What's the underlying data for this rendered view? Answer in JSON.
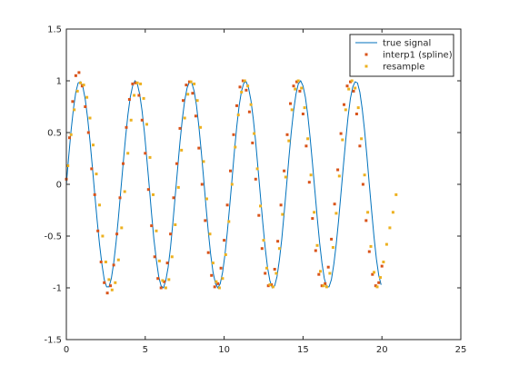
{
  "chart_data": {
    "type": "line",
    "title": "",
    "xlabel": "",
    "ylabel": "",
    "xlim": [
      0,
      25
    ],
    "ylim": [
      -1.5,
      1.5
    ],
    "x_ticks": [
      0,
      5,
      10,
      15,
      20,
      25
    ],
    "y_ticks": [
      -1.5,
      -1,
      -0.5,
      0,
      0.5,
      1,
      1.5
    ],
    "x_tick_labels": [
      "0",
      "5",
      "10",
      "15",
      "20",
      "25"
    ],
    "y_tick_labels": [
      "-1.5",
      "-1",
      "-0.5",
      "0",
      "0.5",
      "1",
      "1.5"
    ],
    "grid": false,
    "legend_position": "top-right",
    "series": [
      {
        "name": "true signal",
        "style": "line",
        "color": "#0072bd",
        "x": [
          0,
          0.15,
          0.3,
          0.45,
          0.6,
          0.75,
          0.9,
          1.05,
          1.2,
          1.35,
          1.5,
          1.65,
          1.8,
          1.95,
          2.1,
          2.25,
          2.4,
          2.55,
          2.7,
          2.85,
          3.0,
          3.15,
          3.3,
          3.45,
          3.6,
          3.75,
          3.9,
          4.05,
          4.2,
          4.35,
          4.5,
          4.65,
          4.8,
          4.95,
          5.1,
          5.25,
          5.4,
          5.55,
          5.7,
          5.85,
          6.0,
          6.15,
          6.3,
          6.45,
          6.6,
          6.75,
          6.9,
          7.05,
          7.2,
          7.35,
          7.5,
          7.65,
          7.8,
          7.95,
          8.1,
          8.25,
          8.4,
          8.55,
          8.7,
          8.85,
          9.0,
          9.15,
          9.3,
          9.45,
          9.6,
          9.75,
          9.9,
          10.05,
          10.2,
          10.35,
          10.5,
          10.65,
          10.8,
          10.95,
          11.1,
          11.25,
          11.4,
          11.55,
          11.7,
          11.85,
          12.0,
          12.15,
          12.3,
          12.45,
          12.6,
          12.75,
          12.9,
          13.05,
          13.2,
          13.35,
          13.5,
          13.65,
          13.8,
          13.95,
          14.1,
          14.25,
          14.4,
          14.55,
          14.7,
          14.85,
          15.0,
          15.15,
          15.3,
          15.45,
          15.6,
          15.75,
          15.9,
          16.05,
          16.2,
          16.35,
          16.5,
          16.65,
          16.8,
          16.95,
          17.1,
          17.25,
          17.4,
          17.55,
          17.7,
          17.85,
          18.0,
          18.15,
          18.3,
          18.45,
          18.6,
          18.75,
          18.9,
          19.05,
          19.2,
          19.35,
          19.5,
          19.65,
          19.8,
          19.95
        ],
        "y": [
          0.0,
          0.27,
          0.52,
          0.73,
          0.89,
          0.98,
          0.99,
          0.94,
          0.82,
          0.64,
          0.42,
          0.17,
          -0.09,
          -0.35,
          -0.58,
          -0.77,
          -0.92,
          -0.99,
          -0.99,
          -0.91,
          -0.76,
          -0.56,
          -0.32,
          -0.06,
          0.2,
          0.45,
          0.67,
          0.84,
          0.95,
          1.0,
          0.97,
          0.87,
          0.71,
          0.5,
          0.25,
          -0.01,
          -0.28,
          -0.53,
          -0.73,
          -0.89,
          -0.98,
          -1.0,
          -0.93,
          -0.8,
          -0.61,
          -0.37,
          -0.11,
          0.15,
          0.41,
          0.63,
          0.81,
          0.93,
          0.99,
          0.98,
          0.9,
          0.76,
          0.56,
          0.32,
          0.06,
          -0.21,
          -0.46,
          -0.68,
          -0.85,
          -0.96,
          -1.0,
          -0.96,
          -0.85,
          -0.68,
          -0.46,
          -0.21,
          0.05,
          0.32,
          0.56,
          0.76,
          0.9,
          0.98,
          0.99,
          0.93,
          0.81,
          0.63,
          0.41,
          0.15,
          -0.11,
          -0.37,
          -0.61,
          -0.8,
          -0.93,
          -1.0,
          -0.98,
          -0.89,
          -0.73,
          -0.53,
          -0.28,
          -0.02,
          0.25,
          0.5,
          0.71,
          0.87,
          0.97,
          1.0,
          0.95,
          0.84,
          0.67,
          0.45,
          0.2,
          -0.06,
          -0.32,
          -0.56,
          -0.76,
          -0.91,
          -0.99,
          -0.99,
          -0.92,
          -0.77,
          -0.58,
          -0.35,
          -0.09,
          0.17,
          0.42,
          0.65,
          0.83,
          0.94,
          0.99,
          0.98,
          0.89,
          0.73,
          0.52,
          0.27,
          0.0,
          -0.26,
          -0.51,
          -0.72,
          -0.88,
          -0.97
        ]
      },
      {
        "name": "interp1 (spline)",
        "style": "markers",
        "color": "#d95319",
        "x": [
          0.0,
          0.2,
          0.4,
          0.6,
          0.8,
          1.0,
          1.2,
          1.4,
          1.6,
          1.8,
          2.0,
          2.2,
          2.4,
          2.6,
          2.8,
          3.0,
          3.2,
          3.4,
          3.6,
          3.8,
          4.0,
          4.2,
          4.4,
          4.6,
          4.8,
          5.0,
          5.2,
          5.4,
          5.6,
          5.8,
          6.0,
          6.2,
          6.4,
          6.6,
          6.8,
          7.0,
          7.2,
          7.4,
          7.6,
          7.8,
          8.0,
          8.2,
          8.4,
          8.6,
          8.8,
          9.0,
          9.2,
          9.4,
          9.6,
          9.8,
          10.0,
          10.2,
          10.4,
          10.6,
          10.8,
          11.0,
          11.2,
          11.4,
          11.6,
          11.8,
          12.0,
          12.2,
          12.4,
          12.6,
          12.8,
          13.0,
          13.2,
          13.4,
          13.6,
          13.8,
          14.0,
          14.2,
          14.4,
          14.6,
          14.8,
          15.0,
          15.2,
          15.4,
          15.6,
          15.8,
          16.0,
          16.2,
          16.4,
          16.6,
          16.8,
          17.0,
          17.2,
          17.4,
          17.6,
          17.8,
          18.0,
          18.2,
          18.4,
          18.6,
          18.8,
          19.0,
          19.2,
          19.4,
          19.6,
          19.8,
          20.0
        ],
        "y": [
          0.05,
          0.45,
          0.8,
          1.05,
          1.08,
          0.95,
          0.75,
          0.5,
          0.15,
          -0.1,
          -0.45,
          -0.75,
          -0.95,
          -1.05,
          -0.98,
          -0.78,
          -0.48,
          -0.13,
          0.2,
          0.55,
          0.82,
          0.97,
          0.98,
          0.86,
          0.62,
          0.3,
          -0.05,
          -0.4,
          -0.7,
          -0.91,
          -1.0,
          -0.94,
          -0.76,
          -0.48,
          -0.13,
          0.2,
          0.54,
          0.81,
          0.96,
          0.99,
          0.88,
          0.66,
          0.35,
          0.0,
          -0.35,
          -0.66,
          -0.88,
          -0.99,
          -0.96,
          -0.81,
          -0.54,
          -0.2,
          0.13,
          0.48,
          0.76,
          0.94,
          1.0,
          0.91,
          0.7,
          0.4,
          0.05,
          -0.3,
          -0.62,
          -0.86,
          -0.98,
          -0.97,
          -0.82,
          -0.55,
          -0.2,
          0.13,
          0.48,
          0.78,
          0.95,
          0.99,
          0.9,
          0.68,
          0.37,
          0.02,
          -0.33,
          -0.64,
          -0.87,
          -0.98,
          -0.96,
          -0.8,
          -0.53,
          -0.19,
          0.14,
          0.49,
          0.77,
          0.95,
          0.99,
          0.9,
          0.68,
          0.37,
          0.0,
          -0.35,
          -0.65,
          -0.87,
          -0.98,
          -0.95,
          -0.79
        ]
      },
      {
        "name": "resample",
        "style": "markers",
        "color": "#edb120",
        "x": [
          0.1,
          0.3,
          0.5,
          0.7,
          0.9,
          1.1,
          1.3,
          1.5,
          1.7,
          1.9,
          2.1,
          2.3,
          2.5,
          2.7,
          2.9,
          3.1,
          3.3,
          3.5,
          3.7,
          3.9,
          4.1,
          4.3,
          4.5,
          4.7,
          4.9,
          5.1,
          5.3,
          5.5,
          5.7,
          5.9,
          6.1,
          6.3,
          6.5,
          6.7,
          6.9,
          7.1,
          7.3,
          7.5,
          7.7,
          7.9,
          8.1,
          8.3,
          8.5,
          8.7,
          8.9,
          9.1,
          9.3,
          9.5,
          9.7,
          9.9,
          10.1,
          10.3,
          10.5,
          10.7,
          10.9,
          11.1,
          11.3,
          11.5,
          11.7,
          11.9,
          12.1,
          12.3,
          12.5,
          12.7,
          12.9,
          13.1,
          13.3,
          13.5,
          13.7,
          13.9,
          14.1,
          14.3,
          14.5,
          14.7,
          14.9,
          15.1,
          15.3,
          15.5,
          15.7,
          15.9,
          16.1,
          16.3,
          16.5,
          16.7,
          16.9,
          17.1,
          17.3,
          17.5,
          17.7,
          17.9,
          18.1,
          18.3,
          18.5,
          18.7,
          18.9,
          19.1,
          19.3,
          19.5,
          19.7,
          19.9,
          20.1,
          20.3,
          20.5,
          20.7,
          20.9
        ],
        "y": [
          0.18,
          0.48,
          0.72,
          0.9,
          0.98,
          0.96,
          0.84,
          0.64,
          0.38,
          0.1,
          -0.2,
          -0.5,
          -0.75,
          -0.92,
          -1.02,
          -0.95,
          -0.73,
          -0.42,
          -0.07,
          0.3,
          0.62,
          0.86,
          0.98,
          0.97,
          0.83,
          0.58,
          0.26,
          -0.1,
          -0.45,
          -0.74,
          -0.93,
          -1.0,
          -0.92,
          -0.7,
          -0.39,
          -0.03,
          0.33,
          0.64,
          0.87,
          0.99,
          0.97,
          0.81,
          0.55,
          0.22,
          -0.14,
          -0.48,
          -0.76,
          -0.94,
          -1.0,
          -0.91,
          -0.68,
          -0.36,
          0.0,
          0.36,
          0.67,
          0.89,
          1.0,
          0.95,
          0.77,
          0.49,
          0.15,
          -0.21,
          -0.54,
          -0.81,
          -0.97,
          -0.99,
          -0.86,
          -0.62,
          -0.29,
          0.07,
          0.42,
          0.72,
          0.92,
          1.0,
          0.93,
          0.74,
          0.44,
          0.09,
          -0.27,
          -0.59,
          -0.84,
          -0.98,
          -0.99,
          -0.86,
          -0.61,
          -0.28,
          0.08,
          0.43,
          0.72,
          0.92,
          1.0,
          0.93,
          0.74,
          0.44,
          0.09,
          -0.27,
          -0.6,
          -0.85,
          -0.99,
          -0.9,
          -0.75,
          -0.58,
          -0.42,
          -0.27,
          -0.1
        ]
      }
    ]
  }
}
